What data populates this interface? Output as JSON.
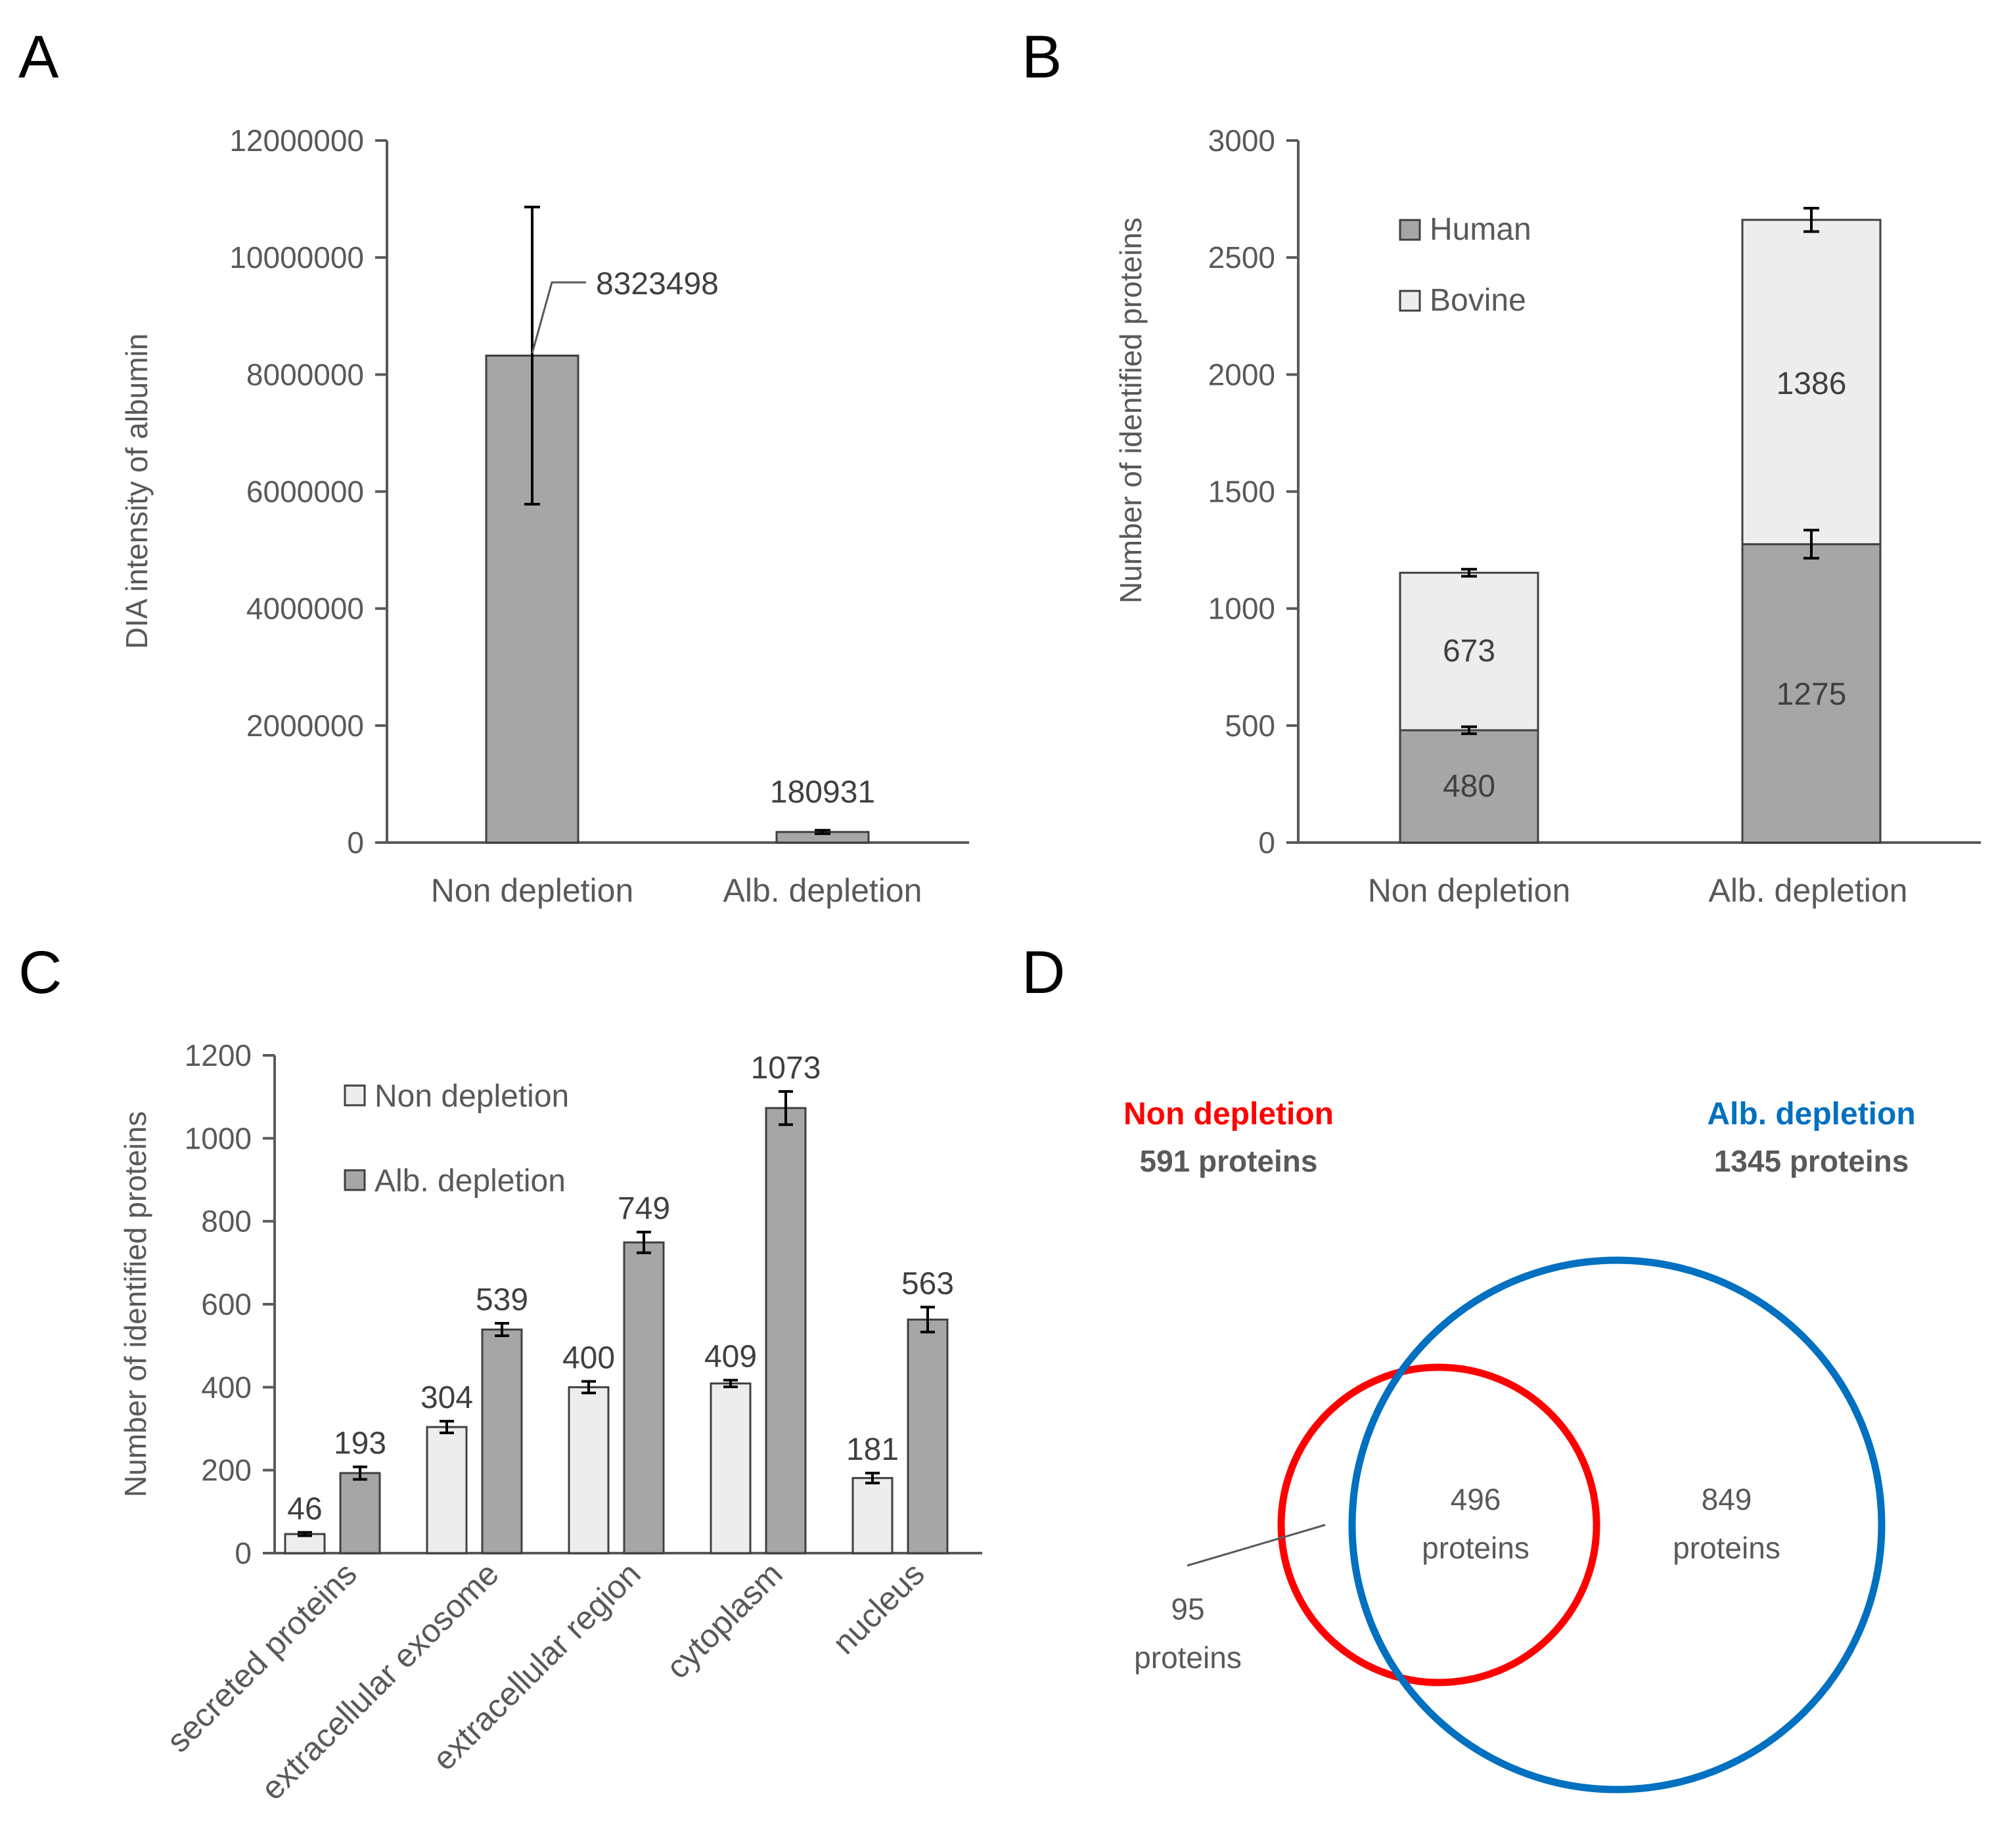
{
  "colors": {
    "dark_bar": "#a6a6a6",
    "light_bar": "#ededed",
    "axis": "#595959",
    "bar_edge": "#404040",
    "venn_red": "#ff0000",
    "venn_blue": "#0070c0"
  },
  "chart_data": [
    {
      "panel": "A",
      "type": "bar",
      "categories": [
        "Non depletion",
        "Alb. depletion"
      ],
      "values": [
        8323498,
        180931
      ],
      "errors": [
        2540000,
        30000
      ],
      "value_labels": [
        "8323498",
        "180931"
      ],
      "ylabel": "DIA intensity of albumin",
      "ylim": [
        0,
        12000000
      ],
      "yticks": [
        "0",
        "2000000",
        "4000000",
        "6000000",
        "8000000",
        "10000000",
        "12000000"
      ]
    },
    {
      "panel": "B",
      "type": "bar",
      "stacked": true,
      "categories": [
        "Non depletion",
        "Alb. depletion"
      ],
      "series": [
        {
          "name": "Human",
          "values": [
            480,
            1275
          ],
          "errors": [
            15,
            60
          ],
          "labels": [
            "480",
            "1275"
          ]
        },
        {
          "name": "Bovine",
          "values": [
            673,
            1386
          ],
          "errors": [
            15,
            50
          ],
          "labels": [
            "673",
            "1386"
          ]
        }
      ],
      "ylabel": "Number of identified proteins",
      "ylim": [
        0,
        3000
      ],
      "yticks": [
        "0",
        "500",
        "1000",
        "1500",
        "2000",
        "2500",
        "3000"
      ],
      "legend": [
        "Human",
        "Bovine"
      ]
    },
    {
      "panel": "C",
      "type": "bar",
      "categories": [
        "secreted proteins",
        "extracellular exosome",
        "extracellular region",
        "cytoplasm",
        "nucleus"
      ],
      "series": [
        {
          "name": "Non depletion",
          "values": [
            46,
            304,
            400,
            409,
            181
          ],
          "errors": [
            4,
            14,
            14,
            8,
            12
          ],
          "labels": [
            "46",
            "304",
            "400",
            "409",
            "181"
          ]
        },
        {
          "name": "Alb. depletion",
          "values": [
            193,
            539,
            749,
            1073,
            563
          ],
          "errors": [
            15,
            15,
            25,
            40,
            30
          ],
          "labels": [
            "193",
            "539",
            "749",
            "1073",
            "563"
          ]
        }
      ],
      "ylabel": "Number of identified proteins",
      "ylim": [
        0,
        1200
      ],
      "yticks": [
        "0",
        "200",
        "400",
        "600",
        "800",
        "1000",
        "1200"
      ],
      "legend": [
        "Non depletion",
        "Alb. depletion"
      ]
    },
    {
      "panel": "D",
      "type": "venn",
      "sets": [
        {
          "name": "Non depletion",
          "total_label": "591 proteins",
          "only": "95",
          "only_unit": "proteins"
        },
        {
          "name": "Alb. depletion",
          "total_label": "1345 proteins",
          "only": "849",
          "only_unit": "proteins"
        }
      ],
      "overlap": "496",
      "overlap_unit": "proteins"
    }
  ],
  "panels": {
    "a": "A",
    "b": "B",
    "c": "C",
    "d": "D"
  }
}
